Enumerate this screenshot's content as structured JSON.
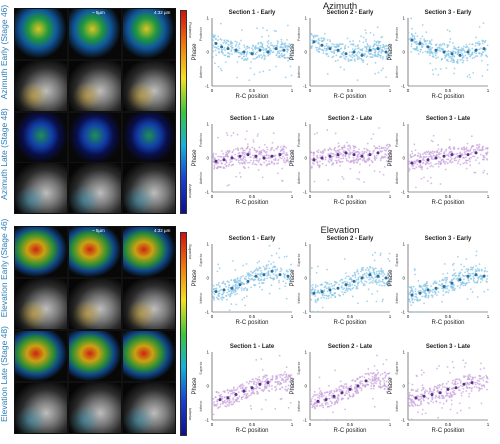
{
  "rows": [
    {
      "label": "Azimuth Early (Stage 46)",
      "scalebar": "~ 5µm",
      "time": "4:32 µm"
    },
    {
      "label": "Azimuth Late (Stage 48)",
      "scalebar": "",
      "time": ""
    },
    {
      "label": "Elevation Early (Stage 46)",
      "scalebar": "~ 5µm",
      "time": "4:32 µm"
    },
    {
      "label": "Elevation Late (Stage 48)",
      "scalebar": "",
      "time": ""
    }
  ],
  "colorbars": {
    "azimuth": {
      "top": "Posterior",
      "bottom": "Anterior"
    },
    "elevation": {
      "top": "Superior",
      "bottom": "Inferior"
    }
  },
  "panel_titles": {
    "azimuth": "Azimuth",
    "elevation": "Elevation"
  },
  "colors": {
    "early": "#87c5e6",
    "early_dot": "#2a6fa0",
    "late": "#c8a4dc",
    "late_dot": "#5a2d8a",
    "label": "#2b7fb8"
  },
  "chart_data": [
    {
      "type": "scatter",
      "title": "Section 1 - Early",
      "xlabel": "R-C position",
      "ylabel": "Phase",
      "xlim": [
        0,
        1
      ],
      "ylim": [
        -1,
        1
      ],
      "y_top": "Posterior",
      "y_bottom": "Anterior",
      "color": "early",
      "binned": [
        [
          0.05,
          0.25
        ],
        [
          0.12,
          0.15
        ],
        [
          0.2,
          0.1
        ],
        [
          0.3,
          0.05
        ],
        [
          0.4,
          0.0
        ],
        [
          0.5,
          -0.05
        ],
        [
          0.6,
          0.05
        ],
        [
          0.7,
          0.0
        ],
        [
          0.8,
          0.1
        ],
        [
          0.9,
          0.05
        ]
      ]
    },
    {
      "type": "scatter",
      "title": "Section 2 - Early",
      "xlabel": "R-C position",
      "ylabel": "Phase",
      "xlim": [
        0,
        1
      ],
      "ylim": [
        -1,
        1
      ],
      "y_top": "Posterior",
      "y_bottom": "Anterior",
      "color": "early",
      "binned": [
        [
          0.05,
          0.3
        ],
        [
          0.15,
          0.2
        ],
        [
          0.25,
          0.1
        ],
        [
          0.35,
          0.05
        ],
        [
          0.45,
          -0.05
        ],
        [
          0.55,
          0.0
        ],
        [
          0.65,
          -0.1
        ],
        [
          0.75,
          0.05
        ],
        [
          0.85,
          0.1
        ],
        [
          0.95,
          0.0
        ]
      ]
    },
    {
      "type": "scatter",
      "title": "Section 3 - Early",
      "xlabel": "R-C position",
      "ylabel": "Phase",
      "xlim": [
        0,
        1
      ],
      "ylim": [
        -1,
        1
      ],
      "y_top": "Posterior",
      "y_bottom": "Anterior",
      "color": "early",
      "binned": [
        [
          0.05,
          0.35
        ],
        [
          0.15,
          0.25
        ],
        [
          0.25,
          0.15
        ],
        [
          0.35,
          0.05
        ],
        [
          0.45,
          0.0
        ],
        [
          0.55,
          -0.05
        ],
        [
          0.65,
          -0.1
        ],
        [
          0.75,
          0.0
        ],
        [
          0.85,
          0.05
        ],
        [
          0.95,
          0.1
        ]
      ]
    },
    {
      "type": "scatter",
      "title": "Section 1 - Late",
      "xlabel": "R-C position",
      "ylabel": "Phase",
      "xlim": [
        0,
        1
      ],
      "ylim": [
        -1,
        1
      ],
      "y_top": "Posterior",
      "y_bottom": "Anterior",
      "color": "late",
      "binned": [
        [
          0.05,
          -0.1
        ],
        [
          0.15,
          -0.05
        ],
        [
          0.25,
          0.0
        ],
        [
          0.35,
          0.05
        ],
        [
          0.45,
          0.1
        ],
        [
          0.55,
          0.05
        ],
        [
          0.65,
          0.0
        ],
        [
          0.75,
          0.05
        ],
        [
          0.85,
          0.1
        ]
      ]
    },
    {
      "type": "scatter",
      "title": "Section 2 - Late",
      "xlabel": "R-C position",
      "ylabel": "Phase",
      "xlim": [
        0,
        1
      ],
      "ylim": [
        -1,
        1
      ],
      "y_top": "Posterior",
      "y_bottom": "Anterior",
      "color": "late",
      "binned": [
        [
          0.05,
          -0.05
        ],
        [
          0.15,
          0.0
        ],
        [
          0.25,
          0.05
        ],
        [
          0.35,
          0.1
        ],
        [
          0.45,
          0.15
        ],
        [
          0.55,
          0.1
        ],
        [
          0.65,
          0.05
        ],
        [
          0.75,
          0.1
        ],
        [
          0.85,
          0.15
        ]
      ]
    },
    {
      "type": "scatter",
      "title": "Section 3 - Late",
      "xlabel": "R-C position",
      "ylabel": "Phase",
      "xlim": [
        0,
        1
      ],
      "ylim": [
        -1,
        1
      ],
      "y_top": "Posterior",
      "y_bottom": "Anterior",
      "color": "late",
      "binned": [
        [
          0.05,
          -0.15
        ],
        [
          0.15,
          -0.1
        ],
        [
          0.25,
          -0.05
        ],
        [
          0.35,
          0.0
        ],
        [
          0.45,
          0.05
        ],
        [
          0.55,
          0.1
        ],
        [
          0.65,
          0.05
        ],
        [
          0.75,
          0.1
        ],
        [
          0.85,
          0.15
        ]
      ]
    },
    {
      "type": "scatter",
      "title": "Section 1 - Early",
      "xlabel": "R-C position",
      "ylabel": "Phase",
      "xlim": [
        0,
        1
      ],
      "ylim": [
        -1,
        1
      ],
      "y_top": "Superior",
      "y_bottom": "Inferior",
      "color": "early",
      "binned": [
        [
          0.05,
          -0.4
        ],
        [
          0.15,
          -0.35
        ],
        [
          0.25,
          -0.3
        ],
        [
          0.35,
          -0.2
        ],
        [
          0.45,
          -0.1
        ],
        [
          0.55,
          0.05
        ],
        [
          0.65,
          0.1
        ],
        [
          0.75,
          0.2
        ],
        [
          0.85,
          0.1
        ],
        [
          0.95,
          0.05
        ]
      ]
    },
    {
      "type": "scatter",
      "title": "Section 2 - Early",
      "xlabel": "R-C position",
      "ylabel": "Phase",
      "xlim": [
        0,
        1
      ],
      "ylim": [
        -1,
        1
      ],
      "y_top": "Superior",
      "y_bottom": "Inferior",
      "color": "early",
      "binned": [
        [
          0.05,
          -0.45
        ],
        [
          0.15,
          -0.4
        ],
        [
          0.25,
          -0.35
        ],
        [
          0.35,
          -0.3
        ],
        [
          0.45,
          -0.2
        ],
        [
          0.55,
          -0.1
        ],
        [
          0.65,
          0.0
        ],
        [
          0.75,
          0.1
        ],
        [
          0.85,
          0.05
        ],
        [
          0.95,
          0.0
        ]
      ]
    },
    {
      "type": "scatter",
      "title": "Section 3 - Early",
      "xlabel": "R-C position",
      "ylabel": "Phase",
      "xlim": [
        0,
        1
      ],
      "ylim": [
        -1,
        1
      ],
      "y_top": "Superior",
      "y_bottom": "Inferior",
      "color": "early",
      "binned": [
        [
          0.05,
          -0.5
        ],
        [
          0.15,
          -0.45
        ],
        [
          0.25,
          -0.35
        ],
        [
          0.35,
          -0.3
        ],
        [
          0.45,
          -0.25
        ],
        [
          0.55,
          -0.15
        ],
        [
          0.65,
          -0.05
        ],
        [
          0.75,
          0.05
        ],
        [
          0.85,
          0.1
        ],
        [
          0.95,
          0.05
        ]
      ]
    },
    {
      "type": "scatter",
      "title": "Section 1 - Late",
      "xlabel": "R-C position",
      "ylabel": "Phase",
      "xlim": [
        0,
        1
      ],
      "ylim": [
        -1,
        1
      ],
      "y_top": "Superior",
      "y_bottom": "Inferior",
      "color": "late",
      "binned": [
        [
          0.1,
          -0.4
        ],
        [
          0.2,
          -0.35
        ],
        [
          0.3,
          -0.25
        ],
        [
          0.4,
          -0.15
        ],
        [
          0.5,
          -0.05
        ],
        [
          0.6,
          0.05
        ],
        [
          0.7,
          0.1
        ]
      ]
    },
    {
      "type": "scatter",
      "title": "Section 2 - Late",
      "xlabel": "R-C position",
      "ylabel": "Phase",
      "xlim": [
        0,
        1
      ],
      "ylim": [
        -1,
        1
      ],
      "y_top": "Superior",
      "y_bottom": "Inferior",
      "color": "late",
      "binned": [
        [
          0.1,
          -0.45
        ],
        [
          0.2,
          -0.4
        ],
        [
          0.3,
          -0.3
        ],
        [
          0.4,
          -0.2
        ],
        [
          0.5,
          -0.1
        ],
        [
          0.6,
          0.0
        ],
        [
          0.7,
          0.15
        ]
      ]
    },
    {
      "type": "scatter",
      "title": "Section 3 - Late",
      "xlabel": "R-C position",
      "ylabel": "Phase",
      "xlim": [
        0,
        1
      ],
      "ylim": [
        -1,
        1
      ],
      "y_top": "Superior",
      "y_bottom": "Inferior",
      "color": "late",
      "binned": [
        [
          0.1,
          -0.35
        ],
        [
          0.2,
          -0.3
        ],
        [
          0.3,
          -0.25
        ],
        [
          0.4,
          -0.2
        ],
        [
          0.5,
          -0.1
        ],
        [
          0.6,
          -0.05
        ],
        [
          0.7,
          0.05
        ],
        [
          0.8,
          0.1
        ]
      ]
    }
  ],
  "ticks": {
    "x": [
      "0",
      "0.5",
      "1"
    ],
    "y": [
      "-1",
      "0",
      "1"
    ]
  }
}
